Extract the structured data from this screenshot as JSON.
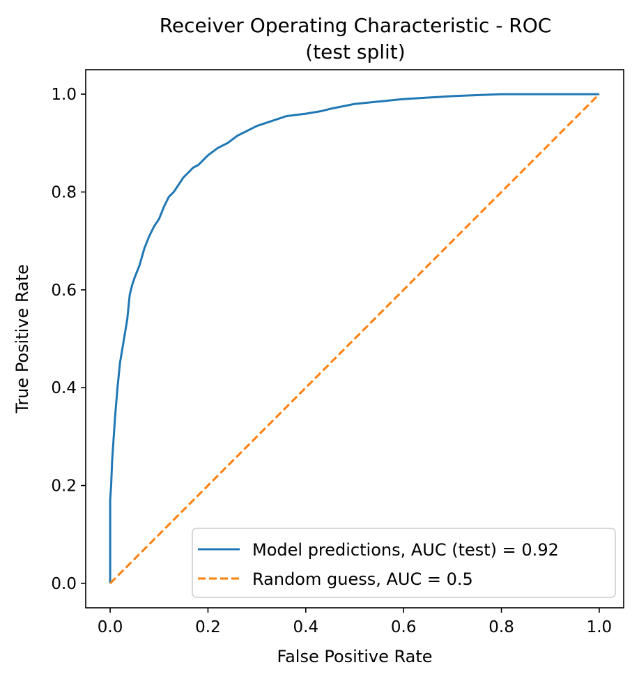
{
  "chart_data": {
    "type": "line",
    "title": "Receiver Operating Characteristic - ROC",
    "subtitle": "(test split)",
    "xlabel": "False Positive Rate",
    "ylabel": "True Positive Rate",
    "xlim": [
      -0.05,
      1.05
    ],
    "ylim": [
      -0.05,
      1.05
    ],
    "xticks": [
      0.0,
      0.2,
      0.4,
      0.6,
      0.8,
      1.0
    ],
    "xtick_labels": [
      "0.0",
      "0.2",
      "0.4",
      "0.6",
      "0.8",
      "1.0"
    ],
    "yticks": [
      0.0,
      0.2,
      0.4,
      0.6,
      0.8,
      1.0
    ],
    "ytick_labels": [
      "0.0",
      "0.2",
      "0.4",
      "0.6",
      "0.8",
      "1.0"
    ],
    "grid": false,
    "legend_position": "lower-right",
    "series": [
      {
        "name": "Model predictions, AUC (test) = 0.92",
        "color": "#1f77b4",
        "style": "solid",
        "x": [
          0.0,
          0.0,
          0.002,
          0.004,
          0.006,
          0.008,
          0.01,
          0.015,
          0.02,
          0.025,
          0.03,
          0.035,
          0.04,
          0.045,
          0.05,
          0.06,
          0.07,
          0.08,
          0.09,
          0.1,
          0.11,
          0.12,
          0.13,
          0.14,
          0.15,
          0.16,
          0.17,
          0.18,
          0.19,
          0.2,
          0.22,
          0.24,
          0.26,
          0.28,
          0.3,
          0.33,
          0.36,
          0.4,
          0.43,
          0.45,
          0.5,
          0.55,
          0.6,
          0.65,
          0.7,
          0.75,
          0.8,
          0.9,
          1.0
        ],
        "y": [
          0.0,
          0.17,
          0.2,
          0.25,
          0.28,
          0.31,
          0.34,
          0.4,
          0.45,
          0.48,
          0.51,
          0.54,
          0.59,
          0.61,
          0.625,
          0.65,
          0.685,
          0.71,
          0.73,
          0.745,
          0.77,
          0.79,
          0.8,
          0.815,
          0.83,
          0.84,
          0.85,
          0.855,
          0.865,
          0.875,
          0.89,
          0.9,
          0.915,
          0.925,
          0.935,
          0.945,
          0.955,
          0.96,
          0.965,
          0.97,
          0.98,
          0.985,
          0.99,
          0.993,
          0.996,
          0.998,
          1.0,
          1.0,
          1.0
        ]
      },
      {
        "name": "Random guess, AUC = 0.5",
        "color": "#ff7f0e",
        "style": "dashed",
        "x": [
          0.0,
          1.0
        ],
        "y": [
          0.0,
          1.0
        ]
      }
    ]
  }
}
